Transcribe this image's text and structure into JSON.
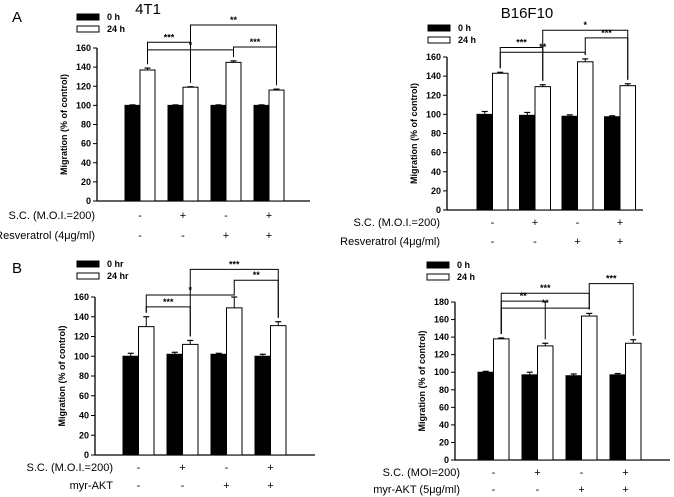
{
  "panel_letters": [
    "A",
    "B"
  ],
  "chart_data": [
    {
      "type": "bar",
      "title": "4T1",
      "ylabel": "Migration (% of control)",
      "ylim": [
        0,
        160
      ],
      "yticks": [
        0,
        20,
        40,
        60,
        80,
        100,
        120,
        140,
        160
      ],
      "legend": "top-left",
      "series": [
        {
          "name": "0 h",
          "color": "#000000",
          "values": [
            100,
            100,
            100,
            100
          ],
          "errors": [
            0.5,
            0.5,
            0.5,
            0.5
          ]
        },
        {
          "name": "24 h",
          "color": "#ffffff",
          "values": [
            137,
            119,
            145,
            116
          ],
          "errors": [
            2,
            0.5,
            1.5,
            1
          ]
        }
      ],
      "conditions": [
        {
          "label": "S.C. (M.O.I.=200)",
          "values": [
            "-",
            "+",
            "-",
            "+"
          ]
        },
        {
          "label": "Resveratrol (4μg/ml)",
          "values": [
            "-",
            "-",
            "+",
            "+"
          ]
        }
      ],
      "significance": [
        {
          "groups": [
            0,
            1
          ],
          "label": "***"
        },
        {
          "groups": [
            0,
            2
          ],
          "label": "*"
        },
        {
          "groups": [
            1,
            3
          ],
          "label": "**"
        },
        {
          "groups": [
            2,
            3
          ],
          "label": "***"
        }
      ]
    },
    {
      "type": "bar",
      "title": "B16F10",
      "ylabel": "Migration (% of control)",
      "ylim": [
        0,
        160
      ],
      "yticks": [
        0,
        20,
        40,
        60,
        80,
        100,
        120,
        140,
        160
      ],
      "legend": "top-left",
      "series": [
        {
          "name": "0 h",
          "color": "#000000",
          "values": [
            100,
            99,
            98,
            97.5
          ],
          "errors": [
            3,
            3,
            1.5,
            1
          ]
        },
        {
          "name": "24 h",
          "color": "#ffffff",
          "values": [
            143,
            129,
            155,
            130
          ],
          "errors": [
            1,
            2,
            3,
            2
          ]
        }
      ],
      "conditions": [
        {
          "label": "S.C. (M.O.I.=200)",
          "values": [
            "-",
            "+",
            "-",
            "+"
          ]
        },
        {
          "label": "Resveratrol (4μg/ml)",
          "values": [
            "-",
            "-",
            "+",
            "+"
          ]
        }
      ],
      "significance": [
        {
          "groups": [
            0,
            1
          ],
          "label": "***"
        },
        {
          "groups": [
            0,
            2
          ],
          "label": "**"
        },
        {
          "groups": [
            1,
            3
          ],
          "label": "*"
        },
        {
          "groups": [
            2,
            3
          ],
          "label": "***"
        }
      ]
    },
    {
      "type": "bar",
      "title": "",
      "ylabel": "Migration (% of control)",
      "ylim": [
        0,
        160
      ],
      "yticks": [
        0,
        20,
        40,
        60,
        80,
        100,
        120,
        140,
        160
      ],
      "legend": "top-left",
      "series": [
        {
          "name": "0 hr",
          "color": "#000000",
          "values": [
            100,
            102,
            102,
            100
          ],
          "errors": [
            3,
            2,
            1,
            2
          ]
        },
        {
          "name": "24 hr",
          "color": "#ffffff",
          "values": [
            130,
            112,
            149,
            131
          ],
          "errors": [
            10,
            4,
            11,
            4
          ]
        }
      ],
      "conditions": [
        {
          "label": "S.C. (M.O.I.=200)",
          "values": [
            "-",
            "+",
            "-",
            "+"
          ]
        },
        {
          "label": "myr-AKT",
          "values": [
            "-",
            "-",
            "+",
            "+"
          ]
        }
      ],
      "significance": [
        {
          "groups": [
            0,
            1
          ],
          "label": "***"
        },
        {
          "groups": [
            0,
            2
          ],
          "label": "*"
        },
        {
          "groups": [
            1,
            3
          ],
          "label": "***"
        },
        {
          "groups": [
            2,
            3
          ],
          "label": "**"
        }
      ]
    },
    {
      "type": "bar",
      "title": "",
      "ylabel": "Migration (% of control)",
      "ylim": [
        0,
        180
      ],
      "yticks": [
        0,
        20,
        40,
        60,
        80,
        100,
        120,
        140,
        160,
        180
      ],
      "legend": "top-left",
      "series": [
        {
          "name": "0 h",
          "color": "#000000",
          "values": [
            100,
            97,
            96,
            97
          ],
          "errors": [
            1,
            3,
            2,
            1.5
          ]
        },
        {
          "name": "24 h",
          "color": "#ffffff",
          "values": [
            138,
            130,
            164,
            133
          ],
          "errors": [
            1,
            3,
            3,
            4
          ]
        }
      ],
      "conditions": [
        {
          "label": "S.C. (MOI=200)",
          "values": [
            "-",
            "+",
            "-",
            "+"
          ]
        },
        {
          "label": "myr-AKT (5μg/ml)",
          "values": [
            "-",
            "-",
            "+",
            "+"
          ]
        }
      ],
      "significance": [
        {
          "groups": [
            0,
            2
          ],
          "label": "***"
        },
        {
          "groups": [
            0,
            1
          ],
          "label": "**"
        },
        {
          "groups": [
            0,
            2
          ],
          "label": "**"
        },
        {
          "groups": [
            2,
            3
          ],
          "label": "***"
        }
      ]
    }
  ]
}
